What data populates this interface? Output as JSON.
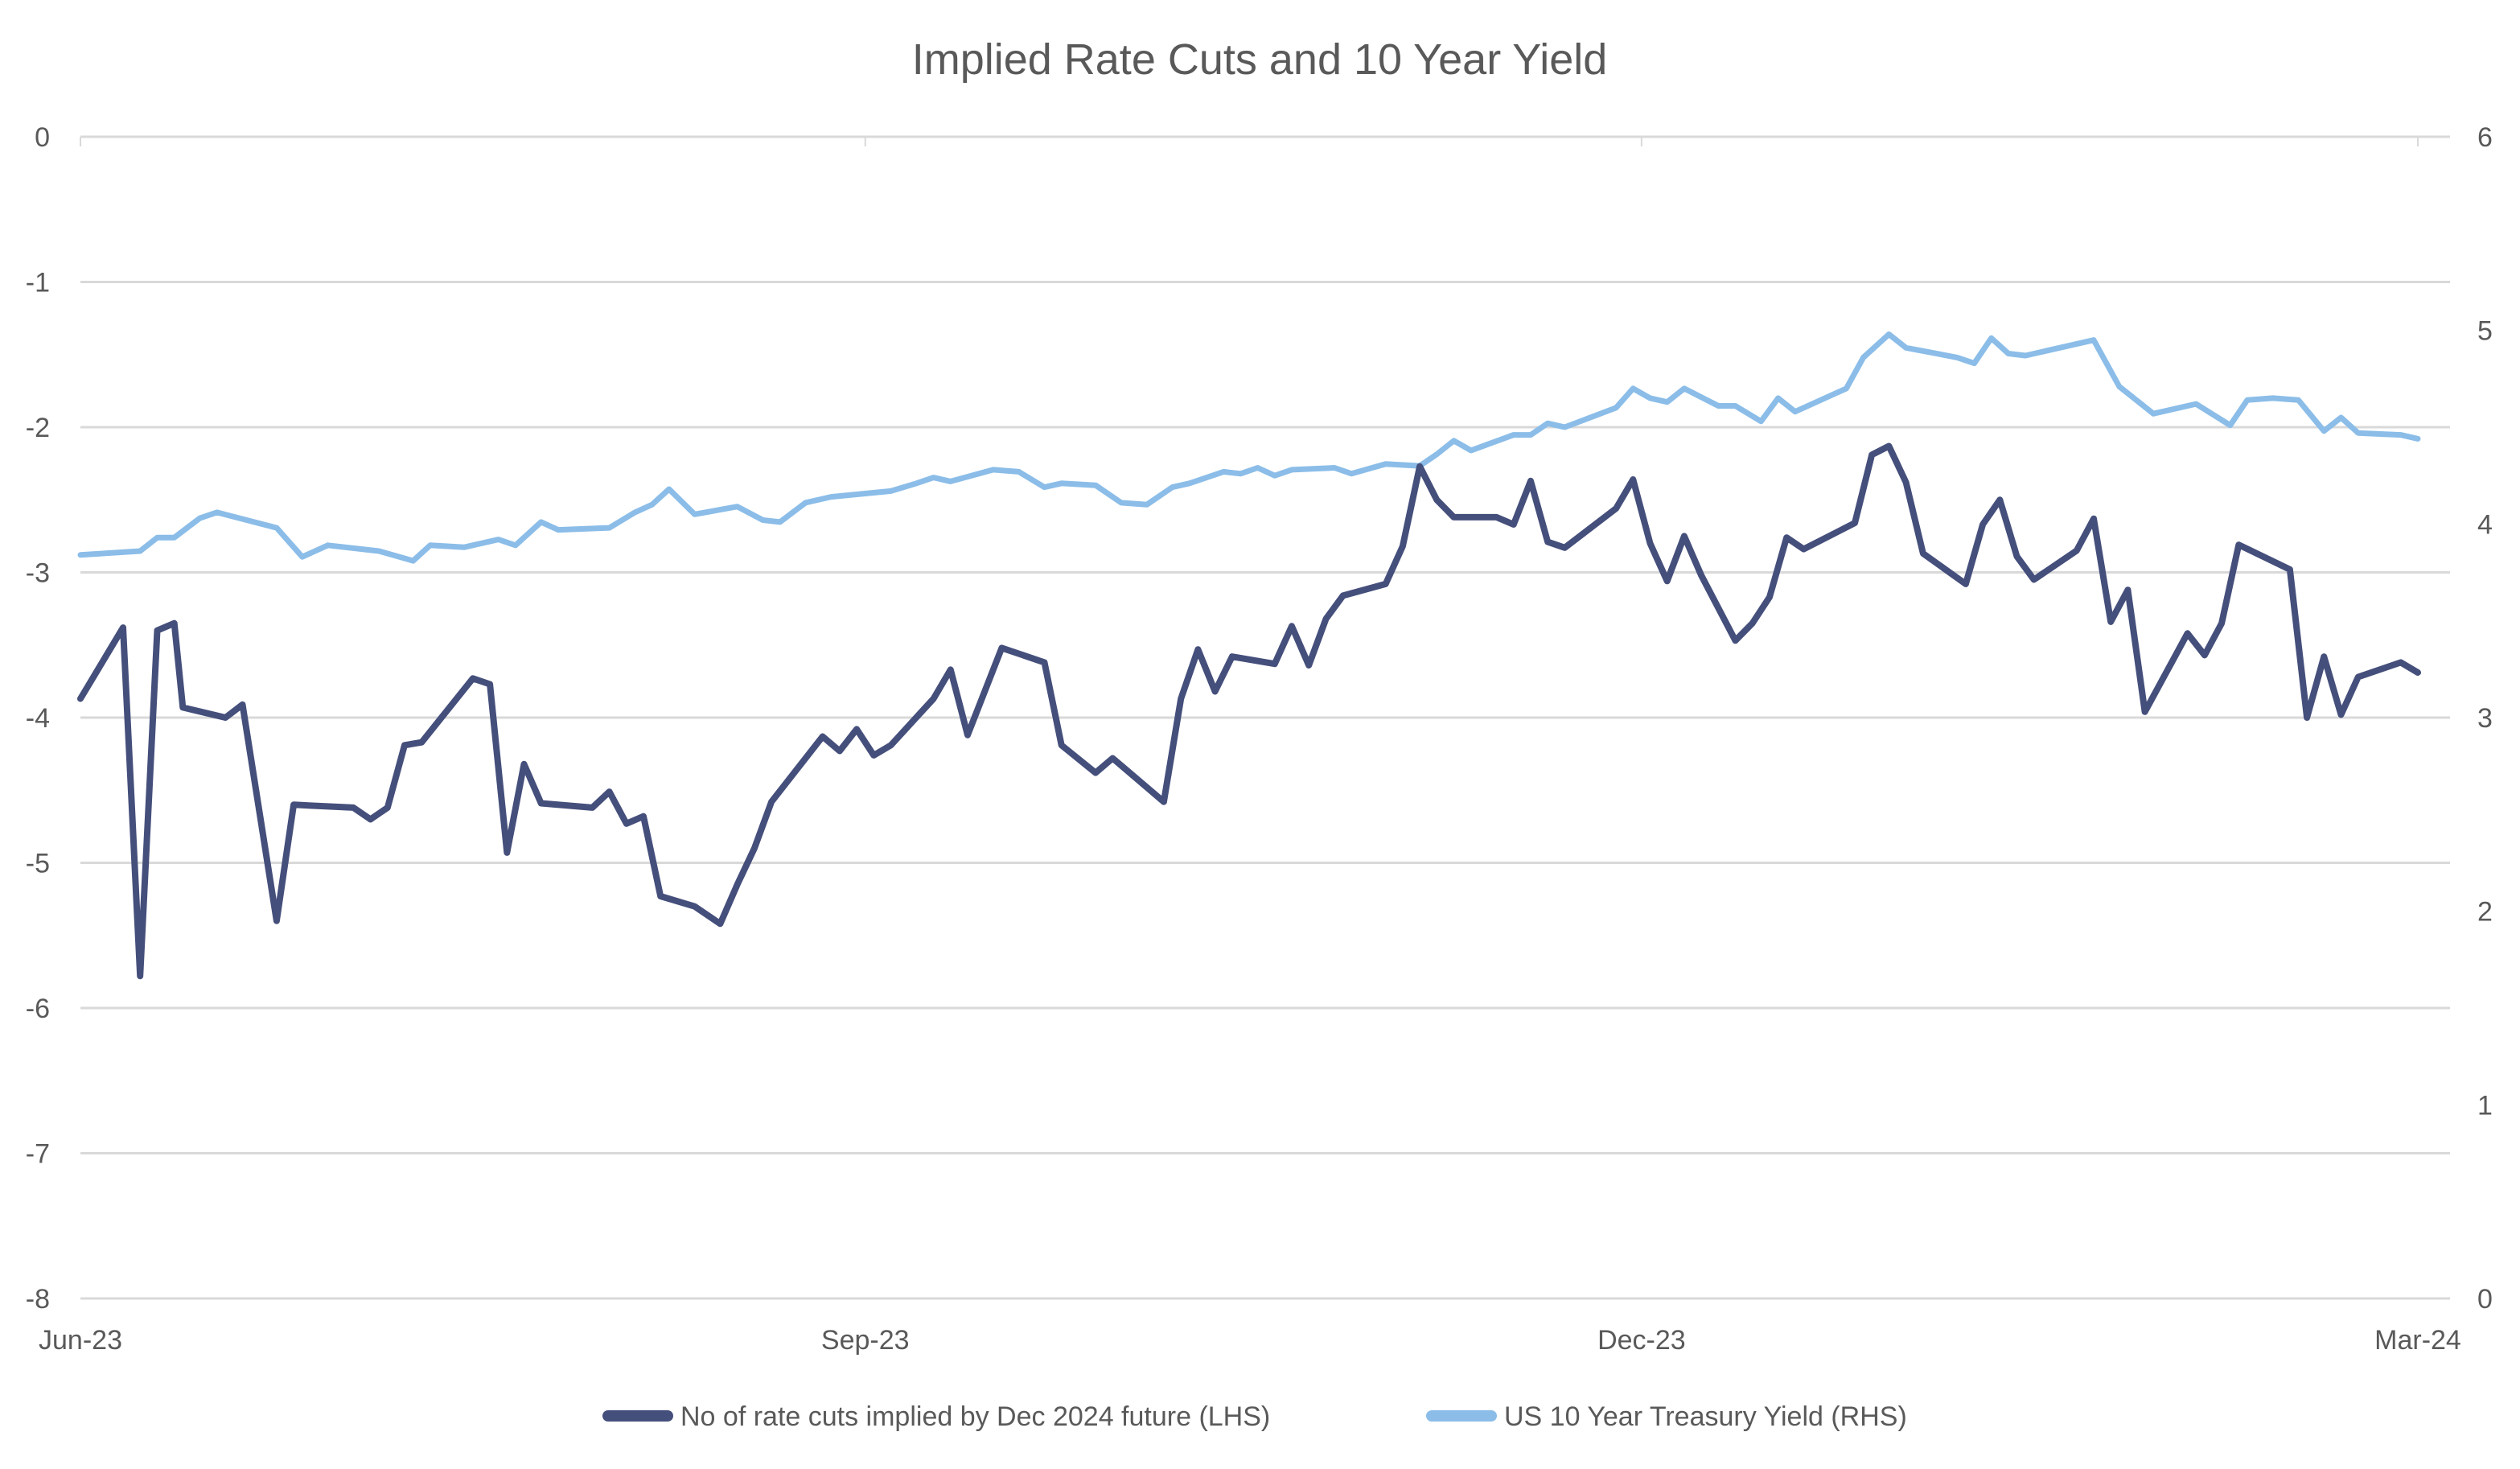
{
  "chart_data": {
    "type": "line",
    "title": "Implied Rate Cuts and 10 Year Yield",
    "xlabel": "",
    "ylabel_left": "",
    "ylabel_right": "",
    "x_range": [
      "2023-06-01",
      "2024-03-05"
    ],
    "x_ticks": [
      {
        "label": "Jun-23",
        "date": "2023-06-01"
      },
      {
        "label": "Sep-23",
        "date": "2023-09-01"
      },
      {
        "label": "Dec-23",
        "date": "2023-12-01"
      },
      {
        "label": "Mar-24",
        "date": "2024-03-01"
      }
    ],
    "y_left": {
      "range": [
        -8,
        0
      ],
      "ticks": [
        "0",
        "-1",
        "-2",
        "-3",
        "-4",
        "-5",
        "-6",
        "-7",
        "-8"
      ],
      "tick_values": [
        0,
        -1,
        -2,
        -3,
        -4,
        -5,
        -6,
        -7,
        -8
      ]
    },
    "y_right": {
      "range": [
        0,
        6
      ],
      "ticks": [
        "6",
        "5",
        "4",
        "3",
        "2",
        "1",
        "0"
      ],
      "tick_values": [
        6,
        5,
        4,
        3,
        2,
        1,
        0
      ]
    },
    "grid": true,
    "legend_position": "bottom",
    "series": [
      {
        "name": "No of rate cuts implied by Dec 2024 future (LHS)",
        "axis": "left",
        "color": "#454f7b",
        "points": [
          [
            "2023-06-01",
            -3.87
          ],
          [
            "2023-06-06",
            -3.38
          ],
          [
            "2023-06-08",
            -5.78
          ],
          [
            "2023-06-10",
            -3.4
          ],
          [
            "2023-06-12",
            -3.35
          ],
          [
            "2023-06-13",
            -3.93
          ],
          [
            "2023-06-18",
            -4.0
          ],
          [
            "2023-06-20",
            -3.91
          ],
          [
            "2023-06-24",
            -5.4
          ],
          [
            "2023-06-26",
            -4.6
          ],
          [
            "2023-07-03",
            -4.62
          ],
          [
            "2023-07-05",
            -4.7
          ],
          [
            "2023-07-07",
            -4.62
          ],
          [
            "2023-07-09",
            -4.19
          ],
          [
            "2023-07-11",
            -4.17
          ],
          [
            "2023-07-17",
            -3.73
          ],
          [
            "2023-07-19",
            -3.77
          ],
          [
            "2023-07-21",
            -4.93
          ],
          [
            "2023-07-23",
            -4.32
          ],
          [
            "2023-07-25",
            -4.59
          ],
          [
            "2023-07-31",
            -4.62
          ],
          [
            "2023-08-02",
            -4.51
          ],
          [
            "2023-08-04",
            -4.73
          ],
          [
            "2023-08-06",
            -4.68
          ],
          [
            "2023-08-08",
            -5.23
          ],
          [
            "2023-08-12",
            -5.3
          ],
          [
            "2023-08-15",
            -5.42
          ],
          [
            "2023-08-17",
            -5.15
          ],
          [
            "2023-08-19",
            -4.9
          ],
          [
            "2023-08-21",
            -4.58
          ],
          [
            "2023-08-27",
            -4.13
          ],
          [
            "2023-08-29",
            -4.23
          ],
          [
            "2023-08-31",
            -4.08
          ],
          [
            "2023-09-02",
            -4.26
          ],
          [
            "2023-09-04",
            -4.19
          ],
          [
            "2023-09-09",
            -3.87
          ],
          [
            "2023-09-11",
            -3.67
          ],
          [
            "2023-09-13",
            -4.12
          ],
          [
            "2023-09-17",
            -3.52
          ],
          [
            "2023-09-22",
            -3.62
          ],
          [
            "2023-09-24",
            -4.19
          ],
          [
            "2023-09-28",
            -4.38
          ],
          [
            "2023-09-30",
            -4.28
          ],
          [
            "2023-10-06",
            -4.58
          ],
          [
            "2023-10-08",
            -3.87
          ],
          [
            "2023-10-10",
            -3.53
          ],
          [
            "2023-10-12",
            -3.82
          ],
          [
            "2023-10-14",
            -3.58
          ],
          [
            "2023-10-19",
            -3.63
          ],
          [
            "2023-10-21",
            -3.37
          ],
          [
            "2023-10-23",
            -3.64
          ],
          [
            "2023-10-25",
            -3.32
          ],
          [
            "2023-10-27",
            -3.16
          ],
          [
            "2023-11-01",
            -3.08
          ],
          [
            "2023-11-03",
            -2.82
          ],
          [
            "2023-11-05",
            -2.27
          ],
          [
            "2023-11-07",
            -2.5
          ],
          [
            "2023-11-09",
            -2.62
          ],
          [
            "2023-11-14",
            -2.62
          ],
          [
            "2023-11-16",
            -2.67
          ],
          [
            "2023-11-18",
            -2.37
          ],
          [
            "2023-11-20",
            -2.79
          ],
          [
            "2023-11-22",
            -2.83
          ],
          [
            "2023-11-28",
            -2.56
          ],
          [
            "2023-11-30",
            -2.36
          ],
          [
            "2023-12-02",
            -2.8
          ],
          [
            "2023-12-04",
            -3.06
          ],
          [
            "2023-12-06",
            -2.75
          ],
          [
            "2023-12-08",
            -3.02
          ],
          [
            "2023-12-12",
            -3.47
          ],
          [
            "2023-12-14",
            -3.35
          ],
          [
            "2023-12-16",
            -3.17
          ],
          [
            "2023-12-18",
            -2.76
          ],
          [
            "2023-12-20",
            -2.84
          ],
          [
            "2023-12-26",
            -2.66
          ],
          [
            "2023-12-28",
            -2.19
          ],
          [
            "2023-12-30",
            -2.13
          ],
          [
            "2024-01-01",
            -2.38
          ],
          [
            "2024-01-03",
            -2.87
          ],
          [
            "2024-01-08",
            -3.08
          ],
          [
            "2024-01-10",
            -2.67
          ],
          [
            "2024-01-12",
            -2.5
          ],
          [
            "2024-01-14",
            -2.89
          ],
          [
            "2024-01-16",
            -3.05
          ],
          [
            "2024-01-21",
            -2.85
          ],
          [
            "2024-01-23",
            -2.63
          ],
          [
            "2024-01-25",
            -3.34
          ],
          [
            "2024-01-27",
            -3.12
          ],
          [
            "2024-01-29",
            -3.96
          ],
          [
            "2024-02-03",
            -3.42
          ],
          [
            "2024-02-05",
            -3.57
          ],
          [
            "2024-02-07",
            -3.35
          ],
          [
            "2024-02-09",
            -2.81
          ],
          [
            "2024-02-15",
            -2.98
          ],
          [
            "2024-02-17",
            -4.0
          ],
          [
            "2024-02-19",
            -3.58
          ],
          [
            "2024-02-21",
            -3.98
          ],
          [
            "2024-02-23",
            -3.72
          ],
          [
            "2024-02-28",
            -3.62
          ],
          [
            "2024-03-01",
            -3.69
          ]
        ]
      },
      {
        "name": "US 10 Year Treasury Yield (RHS)",
        "axis": "right",
        "color": "#8bbde8",
        "points": [
          [
            "2023-06-01",
            3.84
          ],
          [
            "2023-06-08",
            3.86
          ],
          [
            "2023-06-10",
            3.93
          ],
          [
            "2023-06-12",
            3.93
          ],
          [
            "2023-06-15",
            4.03
          ],
          [
            "2023-06-17",
            4.06
          ],
          [
            "2023-06-24",
            3.98
          ],
          [
            "2023-06-27",
            3.83
          ],
          [
            "2023-06-30",
            3.89
          ],
          [
            "2023-07-06",
            3.86
          ],
          [
            "2023-07-10",
            3.81
          ],
          [
            "2023-07-12",
            3.89
          ],
          [
            "2023-07-16",
            3.88
          ],
          [
            "2023-07-20",
            3.92
          ],
          [
            "2023-07-22",
            3.89
          ],
          [
            "2023-07-25",
            4.01
          ],
          [
            "2023-07-27",
            3.97
          ],
          [
            "2023-08-02",
            3.98
          ],
          [
            "2023-08-05",
            4.06
          ],
          [
            "2023-08-07",
            4.1
          ],
          [
            "2023-08-09",
            4.18
          ],
          [
            "2023-08-12",
            4.05
          ],
          [
            "2023-08-17",
            4.09
          ],
          [
            "2023-08-20",
            4.02
          ],
          [
            "2023-08-22",
            4.01
          ],
          [
            "2023-08-25",
            4.11
          ],
          [
            "2023-08-28",
            4.14
          ],
          [
            "2023-09-04",
            4.17
          ],
          [
            "2023-09-07",
            4.21
          ],
          [
            "2023-09-09",
            4.24
          ],
          [
            "2023-09-11",
            4.22
          ],
          [
            "2023-09-16",
            4.28
          ],
          [
            "2023-09-19",
            4.27
          ],
          [
            "2023-09-22",
            4.19
          ],
          [
            "2023-09-24",
            4.21
          ],
          [
            "2023-09-28",
            4.2
          ],
          [
            "2023-10-01",
            4.11
          ],
          [
            "2023-10-04",
            4.1
          ],
          [
            "2023-10-07",
            4.19
          ],
          [
            "2023-10-09",
            4.21
          ],
          [
            "2023-10-13",
            4.27
          ],
          [
            "2023-10-15",
            4.26
          ],
          [
            "2023-10-17",
            4.29
          ],
          [
            "2023-10-19",
            4.25
          ],
          [
            "2023-10-21",
            4.28
          ],
          [
            "2023-10-26",
            4.29
          ],
          [
            "2023-10-28",
            4.26
          ],
          [
            "2023-11-01",
            4.31
          ],
          [
            "2023-11-05",
            4.3
          ],
          [
            "2023-11-07",
            4.36
          ],
          [
            "2023-11-09",
            4.43
          ],
          [
            "2023-11-11",
            4.38
          ],
          [
            "2023-11-16",
            4.46
          ],
          [
            "2023-11-18",
            4.46
          ],
          [
            "2023-11-20",
            4.52
          ],
          [
            "2023-11-22",
            4.5
          ],
          [
            "2023-11-28",
            4.6
          ],
          [
            "2023-11-30",
            4.7
          ],
          [
            "2023-12-02",
            4.65
          ],
          [
            "2023-12-04",
            4.63
          ],
          [
            "2023-12-06",
            4.7
          ],
          [
            "2023-12-10",
            4.61
          ],
          [
            "2023-12-12",
            4.61
          ],
          [
            "2023-12-15",
            4.53
          ],
          [
            "2023-12-17",
            4.65
          ],
          [
            "2023-12-19",
            4.58
          ],
          [
            "2023-12-25",
            4.7
          ],
          [
            "2023-12-27",
            4.86
          ],
          [
            "2023-12-30",
            4.98
          ],
          [
            "2024-01-01",
            4.91
          ],
          [
            "2024-01-07",
            4.86
          ],
          [
            "2024-01-09",
            4.83
          ],
          [
            "2024-01-11",
            4.96
          ],
          [
            "2024-01-13",
            4.88
          ],
          [
            "2024-01-15",
            4.87
          ],
          [
            "2024-01-20",
            4.92
          ],
          [
            "2024-01-23",
            4.95
          ],
          [
            "2024-01-26",
            4.71
          ],
          [
            "2024-01-30",
            4.57
          ],
          [
            "2024-02-04",
            4.62
          ],
          [
            "2024-02-08",
            4.51
          ],
          [
            "2024-02-10",
            4.64
          ],
          [
            "2024-02-13",
            4.65
          ],
          [
            "2024-02-16",
            4.64
          ],
          [
            "2024-02-19",
            4.48
          ],
          [
            "2024-02-21",
            4.55
          ],
          [
            "2024-02-23",
            4.47
          ],
          [
            "2024-02-28",
            4.46
          ],
          [
            "2024-03-01",
            4.44
          ]
        ]
      }
    ]
  }
}
